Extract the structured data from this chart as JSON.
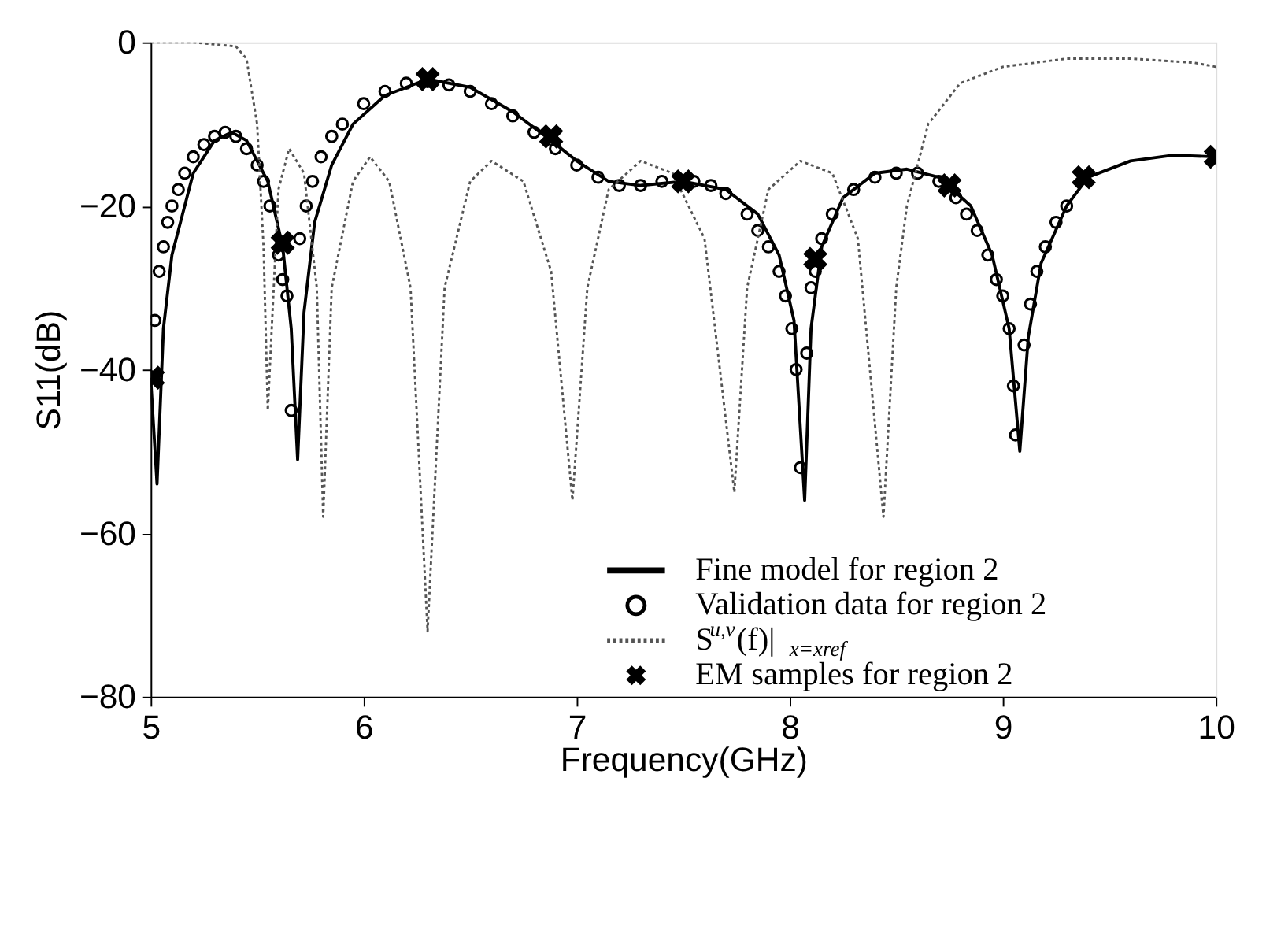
{
  "chart_data": {
    "type": "line",
    "xlabel": "Frequency(GHz)",
    "ylabel": "S11(dB)",
    "xlim": [
      5,
      10
    ],
    "ylim": [
      -80,
      0
    ],
    "xticks": [
      5,
      6,
      7,
      8,
      9,
      10
    ],
    "yticks": [
      -80,
      -60,
      -40,
      -20,
      0
    ],
    "grid": false,
    "legend": "bottom right",
    "series": [
      {
        "name": "Fine model for region 2",
        "line_style": "solid",
        "marker": "none",
        "color": "#000000",
        "x": [
          5.0,
          5.03,
          5.06,
          5.1,
          5.2,
          5.3,
          5.38,
          5.45,
          5.55,
          5.62,
          5.66,
          5.69,
          5.72,
          5.77,
          5.85,
          5.95,
          6.1,
          6.3,
          6.5,
          6.7,
          6.88,
          7.0,
          7.15,
          7.3,
          7.5,
          7.7,
          7.85,
          7.95,
          8.02,
          8.07,
          8.1,
          8.15,
          8.25,
          8.4,
          8.55,
          8.7,
          8.85,
          8.95,
          9.03,
          9.08,
          9.12,
          9.18,
          9.3,
          9.4,
          9.6,
          9.8,
          10.0
        ],
        "values": [
          -41,
          -54,
          -35,
          -26,
          -16,
          -12,
          -11,
          -12,
          -17,
          -25,
          -35,
          -51,
          -33,
          -22,
          -15,
          -10,
          -6.5,
          -4.5,
          -5.5,
          -8.5,
          -12,
          -14.5,
          -17,
          -17.5,
          -17,
          -18,
          -21,
          -26,
          -34,
          -56,
          -35,
          -25,
          -19,
          -16,
          -15.5,
          -16.5,
          -20,
          -26,
          -35,
          -50,
          -36,
          -27,
          -20,
          -16.5,
          -14.5,
          -13.8,
          -14
        ]
      },
      {
        "name": "Validation data for region 2",
        "type": "scatter",
        "marker": "circle",
        "color": "#000000",
        "x": [
          5.02,
          5.04,
          5.06,
          5.08,
          5.1,
          5.13,
          5.16,
          5.2,
          5.25,
          5.3,
          5.35,
          5.4,
          5.45,
          5.5,
          5.53,
          5.56,
          5.6,
          5.62,
          5.64,
          5.66,
          5.7,
          5.73,
          5.76,
          5.8,
          5.85,
          5.9,
          6.0,
          6.1,
          6.2,
          6.3,
          6.4,
          6.5,
          6.6,
          6.7,
          6.8,
          6.9,
          7.0,
          7.1,
          7.2,
          7.3,
          7.4,
          7.55,
          7.63,
          7.7,
          7.8,
          7.85,
          7.9,
          7.95,
          7.98,
          8.01,
          8.03,
          8.05,
          8.08,
          8.1,
          8.12,
          8.15,
          8.2,
          8.3,
          8.4,
          8.5,
          8.6,
          8.7,
          8.78,
          8.83,
          8.88,
          8.93,
          8.97,
          9.0,
          9.03,
          9.05,
          9.06,
          9.1,
          9.13,
          9.16,
          9.2,
          9.25,
          9.3
        ],
        "values": [
          -34,
          -28,
          -25,
          -22,
          -20,
          -18,
          -16,
          -14,
          -12.5,
          -11.5,
          -11,
          -11.5,
          -13,
          -15,
          -17,
          -20,
          -26,
          -29,
          -31,
          -45,
          -24,
          -20,
          -17,
          -14,
          -11.5,
          -10,
          -7.5,
          -6,
          -5,
          -4.8,
          -5.2,
          -6,
          -7.5,
          -9,
          -11,
          -13,
          -15,
          -16.5,
          -17.5,
          -17.5,
          -17,
          -17,
          -17.5,
          -18.5,
          -21,
          -23,
          -25,
          -28,
          -31,
          -35,
          -40,
          -52,
          -38,
          -30,
          -28,
          -24,
          -21,
          -18,
          -16.5,
          -16,
          -16,
          -17,
          -19,
          -21,
          -23,
          -26,
          -29,
          -31,
          -35,
          -42,
          -48,
          -37,
          -32,
          -28,
          -25,
          -22,
          -20
        ]
      },
      {
        "name": "S$^{u,v}$(f)|$_{x=xref}$",
        "line_style": "dotted",
        "marker": "none",
        "color": "#555555",
        "x": [
          5.0,
          5.2,
          5.4,
          5.45,
          5.5,
          5.53,
          5.55,
          5.6,
          5.65,
          5.72,
          5.78,
          5.81,
          5.85,
          5.95,
          6.03,
          6.12,
          6.22,
          6.3,
          6.38,
          6.5,
          6.6,
          6.75,
          6.88,
          6.98,
          7.05,
          7.15,
          7.3,
          7.45,
          7.6,
          7.74,
          7.8,
          7.9,
          8.05,
          8.2,
          8.32,
          8.44,
          8.5,
          8.55,
          8.65,
          8.8,
          9.0,
          9.3,
          9.6,
          9.9,
          10.0
        ],
        "values": [
          0,
          0,
          -0.5,
          -2,
          -10,
          -25,
          -45,
          -18,
          -13,
          -16,
          -30,
          -58,
          -30,
          -17,
          -14,
          -17,
          -30,
          -72,
          -30,
          -17,
          -14.5,
          -17,
          -28,
          -56,
          -30,
          -18,
          -14.5,
          -16,
          -24,
          -55,
          -30,
          -18,
          -14.5,
          -16,
          -24,
          -58,
          -30,
          -20,
          -10,
          -5,
          -3,
          -2,
          -2,
          -2.5,
          -3
        ]
      },
      {
        "name": "EM samples for region 2",
        "type": "scatter",
        "marker": "cross",
        "color": "#000000",
        "x": [
          5.01,
          5.62,
          6.3,
          6.88,
          7.5,
          8.12,
          8.75,
          9.38,
          10.0
        ],
        "values": [
          -41,
          -24.5,
          -4.5,
          -11.5,
          -17,
          -26.5,
          -17.5,
          -16.5,
          -14
        ]
      }
    ]
  }
}
